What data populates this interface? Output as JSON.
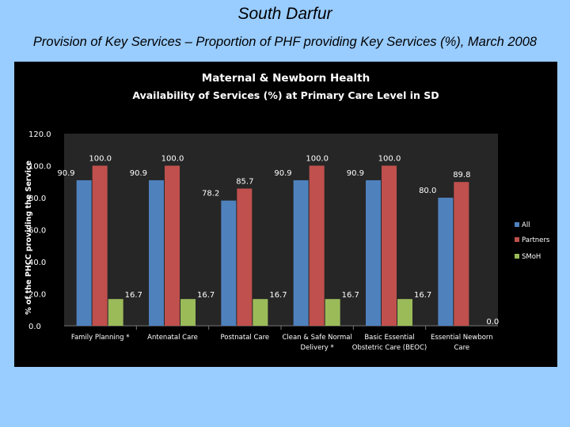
{
  "page": {
    "title": "South Darfur",
    "subtitle": "Provision of Key Services – Proportion of PHF providing Key Services (%), March 2008"
  },
  "chart_data": {
    "type": "bar",
    "title": "Maternal & Newborn Health",
    "subtitle": "Availability of Services (%) at Primary Care Level in SD",
    "ylabel": "% of the PHCC providing the Service",
    "xlabel": "",
    "ylim": [
      0,
      120
    ],
    "yticks": [
      "0.0",
      "20.0",
      "40.0",
      "60.0",
      "80.0",
      "100.0",
      "120.0"
    ],
    "categories": [
      [
        "Family Planning *"
      ],
      [
        "Antenatal Care"
      ],
      [
        "Postnatal Care"
      ],
      [
        "Clean & Safe Normal",
        "Delivery *"
      ],
      [
        "Basic Essential",
        "Obstetric Care (BEOC)"
      ],
      [
        "Essential Newborn",
        "Care"
      ]
    ],
    "series": [
      {
        "name": "All",
        "color": "#4f81bd",
        "values": [
          90.9,
          90.9,
          78.2,
          90.9,
          90.9,
          80.0
        ],
        "labels": [
          "90.9",
          "90.9",
          "78.2",
          "90.9",
          "90.9",
          "80.0"
        ]
      },
      {
        "name": "Partners",
        "color": "#c0504d",
        "values": [
          100.0,
          100.0,
          85.7,
          100.0,
          100.0,
          89.8
        ],
        "labels": [
          "100.0",
          "100.0",
          "85.7",
          "100.0",
          "100.0",
          "89.8"
        ]
      },
      {
        "name": "SMoH",
        "color": "#9bbb59",
        "values": [
          16.7,
          16.7,
          16.7,
          16.7,
          16.7,
          0.0
        ],
        "labels": [
          "16.7",
          "16.7",
          "16.7",
          "16.7",
          "16.7",
          "0.0"
        ]
      }
    ],
    "grid": false,
    "legend": "right"
  }
}
